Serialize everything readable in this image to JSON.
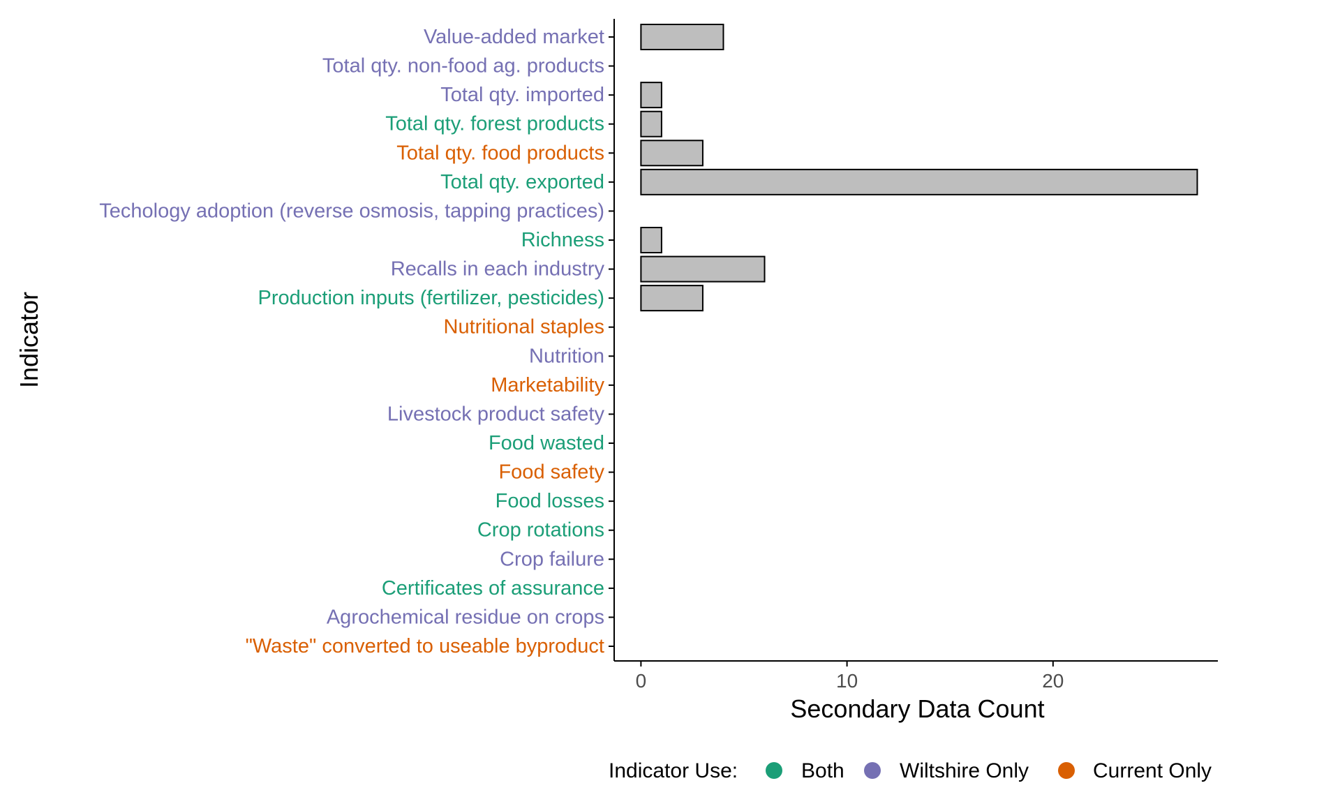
{
  "chart_data": {
    "type": "bar",
    "orientation": "horizontal",
    "xlabel": "Secondary Data Count",
    "ylabel": "Indicator",
    "xlim": [
      -1.3,
      28
    ],
    "xticks": [
      0,
      10,
      20
    ],
    "grid": false,
    "categories": [
      {
        "label": "Value-added market",
        "value": 4,
        "use": "Wiltshire Only"
      },
      {
        "label": "Total qty. non-food ag. products",
        "value": 0,
        "use": "Wiltshire Only"
      },
      {
        "label": "Total qty. imported",
        "value": 1,
        "use": "Wiltshire Only"
      },
      {
        "label": "Total qty. forest products",
        "value": 1,
        "use": "Both"
      },
      {
        "label": "Total qty. food products",
        "value": 3,
        "use": "Current Only"
      },
      {
        "label": "Total qty. exported",
        "value": 27,
        "use": "Both"
      },
      {
        "label": "Techology adoption (reverse osmosis, tapping practices)",
        "value": 0,
        "use": "Wiltshire Only"
      },
      {
        "label": "Richness",
        "value": 1,
        "use": "Both"
      },
      {
        "label": "Recalls in each industry",
        "value": 6,
        "use": "Wiltshire Only"
      },
      {
        "label": "Production inputs (fertilizer, pesticides)",
        "value": 3,
        "use": "Both"
      },
      {
        "label": "Nutritional staples",
        "value": 0,
        "use": "Current Only"
      },
      {
        "label": "Nutrition",
        "value": 0,
        "use": "Wiltshire Only"
      },
      {
        "label": "Marketability",
        "value": 0,
        "use": "Current Only"
      },
      {
        "label": "Livestock product safety",
        "value": 0,
        "use": "Wiltshire Only"
      },
      {
        "label": "Food wasted",
        "value": 0,
        "use": "Both"
      },
      {
        "label": "Food safety",
        "value": 0,
        "use": "Current Only"
      },
      {
        "label": "Food losses",
        "value": 0,
        "use": "Both"
      },
      {
        "label": "Crop rotations",
        "value": 0,
        "use": "Both"
      },
      {
        "label": "Crop failure",
        "value": 0,
        "use": "Wiltshire Only"
      },
      {
        "label": "Certificates of assurance",
        "value": 0,
        "use": "Both"
      },
      {
        "label": "Agrochemical residue on crops",
        "value": 0,
        "use": "Wiltshire Only"
      },
      {
        "label": "\"Waste\" converted to useable byproduct",
        "value": 0,
        "use": "Current Only"
      }
    ],
    "bar_fill": "#bebebe",
    "bar_stroke": "#000000",
    "legend": {
      "title": "Indicator Use:",
      "placement": "bottom",
      "entries": [
        {
          "name": "Both",
          "color": "#1b9e77"
        },
        {
          "name": "Wiltshire Only",
          "color": "#7570b3"
        },
        {
          "name": "Current Only",
          "color": "#d95f02"
        }
      ]
    }
  }
}
